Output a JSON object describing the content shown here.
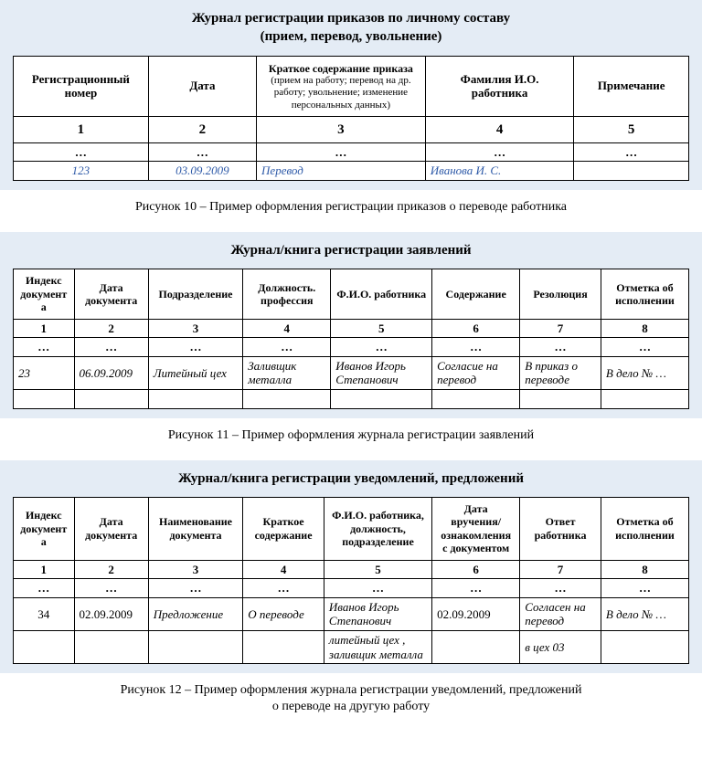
{
  "figure1": {
    "title_line1": "Журнал регистрации приказов по личному составу",
    "title_line2": "(прием, перевод, увольнение)",
    "headers": {
      "c1": "Регистрационный номер",
      "c2": "Дата",
      "c3_main": "Краткое содержание приказа",
      "c3_sub": "(прием на работу; перевод на др. работу; увольнение; изменение персональных данных)",
      "c4": "Фамилия И.О. работника",
      "c5": "Примечание"
    },
    "nums": [
      "1",
      "2",
      "3",
      "4",
      "5"
    ],
    "ellipsis": "…",
    "data": {
      "c1": "123",
      "c2": "03.09.2009",
      "c3": "Перевод",
      "c4": "Иванова И. С.",
      "c5": ""
    },
    "caption": "Рисунок 10 – Пример оформления регистрации приказов о переводе работника"
  },
  "figure2": {
    "title": "Журнал/книга регистрации заявлений",
    "headers": [
      "Индекс документа",
      "Дата документа",
      "Подразделение",
      "Должность. профессия",
      "Ф.И.О. работника",
      "Содержание",
      "Резолюция",
      "Отметка об исполнении"
    ],
    "nums": [
      "1",
      "2",
      "3",
      "4",
      "5",
      "6",
      "7",
      "8"
    ],
    "ellipsis": "…",
    "row": [
      "23",
      "06.09.2009",
      "Литейный цех",
      "Заливщик металла",
      "Иванов Игорь Степанович",
      "Согласие на перевод",
      "В приказ о переводе",
      "В дело № …"
    ],
    "caption": "Рисунок 11 – Пример оформления журнала регистрации заявлений"
  },
  "figure3": {
    "title": "Журнал/книга регистрации уведомлений, предложений",
    "headers": [
      "Индекс документа",
      "Дата документа",
      "Наименование документа",
      "Краткое содержание",
      "Ф.И.О. работника, должность, подразделение",
      "Дата вручения/ознакомления с документом",
      "Ответ работника",
      "Отметка об исполнении"
    ],
    "nums": [
      "1",
      "2",
      "3",
      "4",
      "5",
      "6",
      "7",
      "8"
    ],
    "ellipsis": "…",
    "row1": [
      "34",
      "02.09.2009",
      "Предложение",
      "О переводе",
      "Иванов Игорь Степанович",
      "02.09.2009",
      "Согласен на перевод",
      "В дело № …"
    ],
    "row2": [
      "",
      "",
      "",
      "",
      "литейный цех , заливщик  металла",
      "",
      "в цех 03",
      ""
    ],
    "caption_l1": "Рисунок 12 – Пример оформления журнала регистрации уведомлений, предложений",
    "caption_l2": "о переводе на другую работу"
  },
  "colors": {
    "block_bg": "#e4ecf5",
    "border": "#000000",
    "text": "#000000",
    "accent_blue": "#2e5aa8"
  }
}
